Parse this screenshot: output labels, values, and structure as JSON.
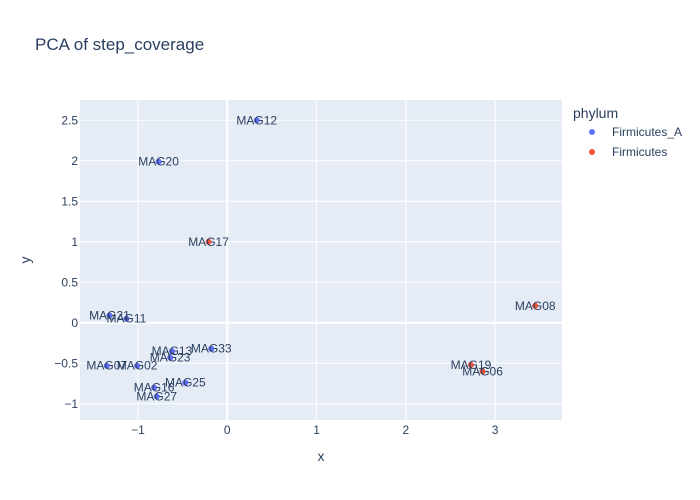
{
  "chart_data": {
    "type": "scatter",
    "title": "PCA of step_coverage",
    "xlabel": "x",
    "ylabel": "y",
    "xlim": [
      -1.65,
      3.75
    ],
    "ylim": [
      -1.2,
      2.75
    ],
    "x_ticks": [
      -1,
      0,
      1,
      2,
      3
    ],
    "y_ticks": [
      -1,
      -0.5,
      0,
      0.5,
      1,
      1.5,
      2,
      2.5
    ],
    "x_tick_labels": [
      "−1",
      "0",
      "1",
      "2",
      "3"
    ],
    "y_tick_labels": [
      "−1",
      "−0.5",
      "0",
      "0.5",
      "1",
      "1.5",
      "2",
      "2.5"
    ],
    "grid": true,
    "legend": {
      "title": "phylum",
      "placement": "right"
    },
    "series": [
      {
        "name": "Firmicutes_A",
        "color": "#636efa",
        "points": [
          {
            "label": "MAG12",
            "x": 0.33,
            "y": 2.5
          },
          {
            "label": "MAG20",
            "x": -0.77,
            "y": 1.99
          },
          {
            "label": "MAG21",
            "x": -1.32,
            "y": 0.09
          },
          {
            "label": "MAG11",
            "x": -1.13,
            "y": 0.05
          },
          {
            "label": "MAG33",
            "x": -0.18,
            "y": -0.32
          },
          {
            "label": "MAG13",
            "x": -0.62,
            "y": -0.35
          },
          {
            "label": "MAG23",
            "x": -0.64,
            "y": -0.43
          },
          {
            "label": "MAG07",
            "x": -1.35,
            "y": -0.53
          },
          {
            "label": "MAG02",
            "x": -1.01,
            "y": -0.53
          },
          {
            "label": "MAG25",
            "x": -0.47,
            "y": -0.74
          },
          {
            "label": "MAG16",
            "x": -0.82,
            "y": -0.8
          },
          {
            "label": "MAG27",
            "x": -0.79,
            "y": -0.91
          }
        ]
      },
      {
        "name": "Firmicutes",
        "color": "#ef553b",
        "points": [
          {
            "label": "MAG17",
            "x": -0.21,
            "y": 1.0
          },
          {
            "label": "MAG08",
            "x": 3.45,
            "y": 0.21
          },
          {
            "label": "MAG19",
            "x": 2.73,
            "y": -0.52
          },
          {
            "label": "MAG06",
            "x": 2.86,
            "y": -0.6
          }
        ]
      }
    ]
  }
}
